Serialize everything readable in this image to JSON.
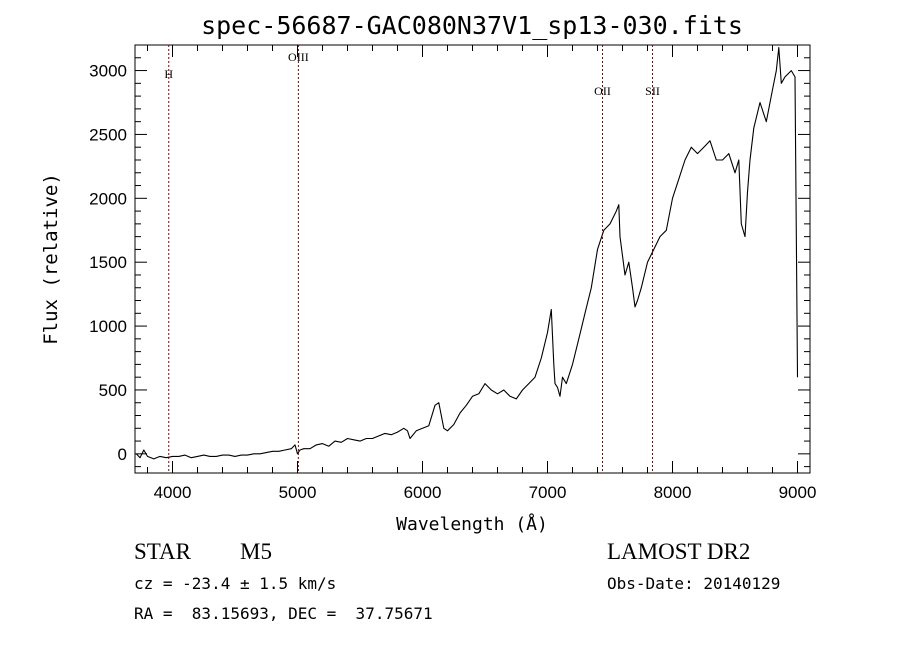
{
  "chart_data": {
    "type": "line",
    "title": "spec-56687-GAC080N37V1_sp13-030.fits",
    "xlabel": "Wavelength (Å)",
    "ylabel": "Flux (relative)",
    "xlim": [
      3700,
      9100
    ],
    "ylim": [
      -150,
      3200
    ],
    "xticks": [
      4000,
      5000,
      6000,
      7000,
      8000,
      9000
    ],
    "yticks": [
      0,
      500,
      1000,
      1500,
      2000,
      2500,
      3000
    ],
    "grid": false,
    "line_color": "#000000",
    "marker_color": "#8b0000",
    "lines": [
      {
        "label": "H",
        "x": 3970
      },
      {
        "label": "OIII",
        "x": 5007
      },
      {
        "label": "OII",
        "x": 7440
      },
      {
        "label": "SII",
        "x": 7840
      }
    ],
    "series": [
      {
        "x": [
          3710,
          3740,
          3770,
          3800,
          3850,
          3900,
          3950,
          4000,
          4050,
          4100,
          4150,
          4200,
          4250,
          4300,
          4350,
          4400,
          4450,
          4500,
          4550,
          4600,
          4650,
          4700,
          4750,
          4800,
          4850,
          4900,
          4950,
          4980,
          5000,
          5020,
          5050,
          5100,
          5150,
          5200,
          5250,
          5300,
          5350,
          5400,
          5450,
          5500,
          5550,
          5600,
          5650,
          5700,
          5750,
          5800,
          5850,
          5880,
          5900,
          5950,
          6000,
          6050,
          6100,
          6130,
          6150,
          6170,
          6200,
          6250,
          6300,
          6350,
          6400,
          6450,
          6500,
          6550,
          6600,
          6650,
          6700,
          6750,
          6800,
          6850,
          6900,
          6950,
          7000,
          7030,
          7050,
          7060,
          7080,
          7100,
          7120,
          7150,
          7200,
          7250,
          7300,
          7350,
          7400,
          7450,
          7500,
          7550,
          7570,
          7580,
          7600,
          7620,
          7650,
          7680,
          7700,
          7720,
          7750,
          7800,
          7850,
          7900,
          7950,
          8000,
          8050,
          8100,
          8150,
          8200,
          8250,
          8300,
          8350,
          8400,
          8450,
          8500,
          8530,
          8550,
          8580,
          8600,
          8620,
          8650,
          8700,
          8750,
          8800,
          8830,
          8850,
          8870,
          8900,
          8950,
          8980,
          9000
        ],
        "values": [
          0,
          -30,
          30,
          -20,
          -40,
          -20,
          -30,
          -20,
          -20,
          -10,
          -30,
          -20,
          -10,
          -20,
          -20,
          -10,
          -10,
          -20,
          -10,
          -10,
          0,
          0,
          10,
          20,
          20,
          30,
          40,
          70,
          0,
          30,
          40,
          40,
          70,
          80,
          60,
          100,
          90,
          120,
          110,
          100,
          120,
          120,
          140,
          160,
          150,
          170,
          200,
          180,
          120,
          180,
          200,
          220,
          380,
          400,
          300,
          200,
          180,
          230,
          320,
          380,
          450,
          470,
          550,
          500,
          470,
          500,
          450,
          430,
          500,
          550,
          600,
          750,
          950,
          1130,
          700,
          550,
          520,
          450,
          600,
          550,
          700,
          900,
          1100,
          1300,
          1600,
          1750,
          1800,
          1900,
          1950,
          1700,
          1550,
          1400,
          1500,
          1300,
          1150,
          1200,
          1300,
          1500,
          1600,
          1700,
          1750,
          2000,
          2150,
          2300,
          2400,
          2350,
          2400,
          2450,
          2300,
          2300,
          2350,
          2200,
          2300,
          1800,
          1700,
          2050,
          2300,
          2550,
          2750,
          2600,
          2850,
          3000,
          3180,
          2900,
          2950,
          3000,
          2950,
          600
        ]
      }
    ]
  },
  "footer": {
    "object_class": "STAR",
    "subclass": "M5",
    "redshift": "cz = -23.4 ± 1.5 km/s",
    "coords": "RA =  83.15693, DEC =  37.75671",
    "survey": "LAMOST DR2",
    "obs_date": "Obs-Date: 20140129"
  }
}
